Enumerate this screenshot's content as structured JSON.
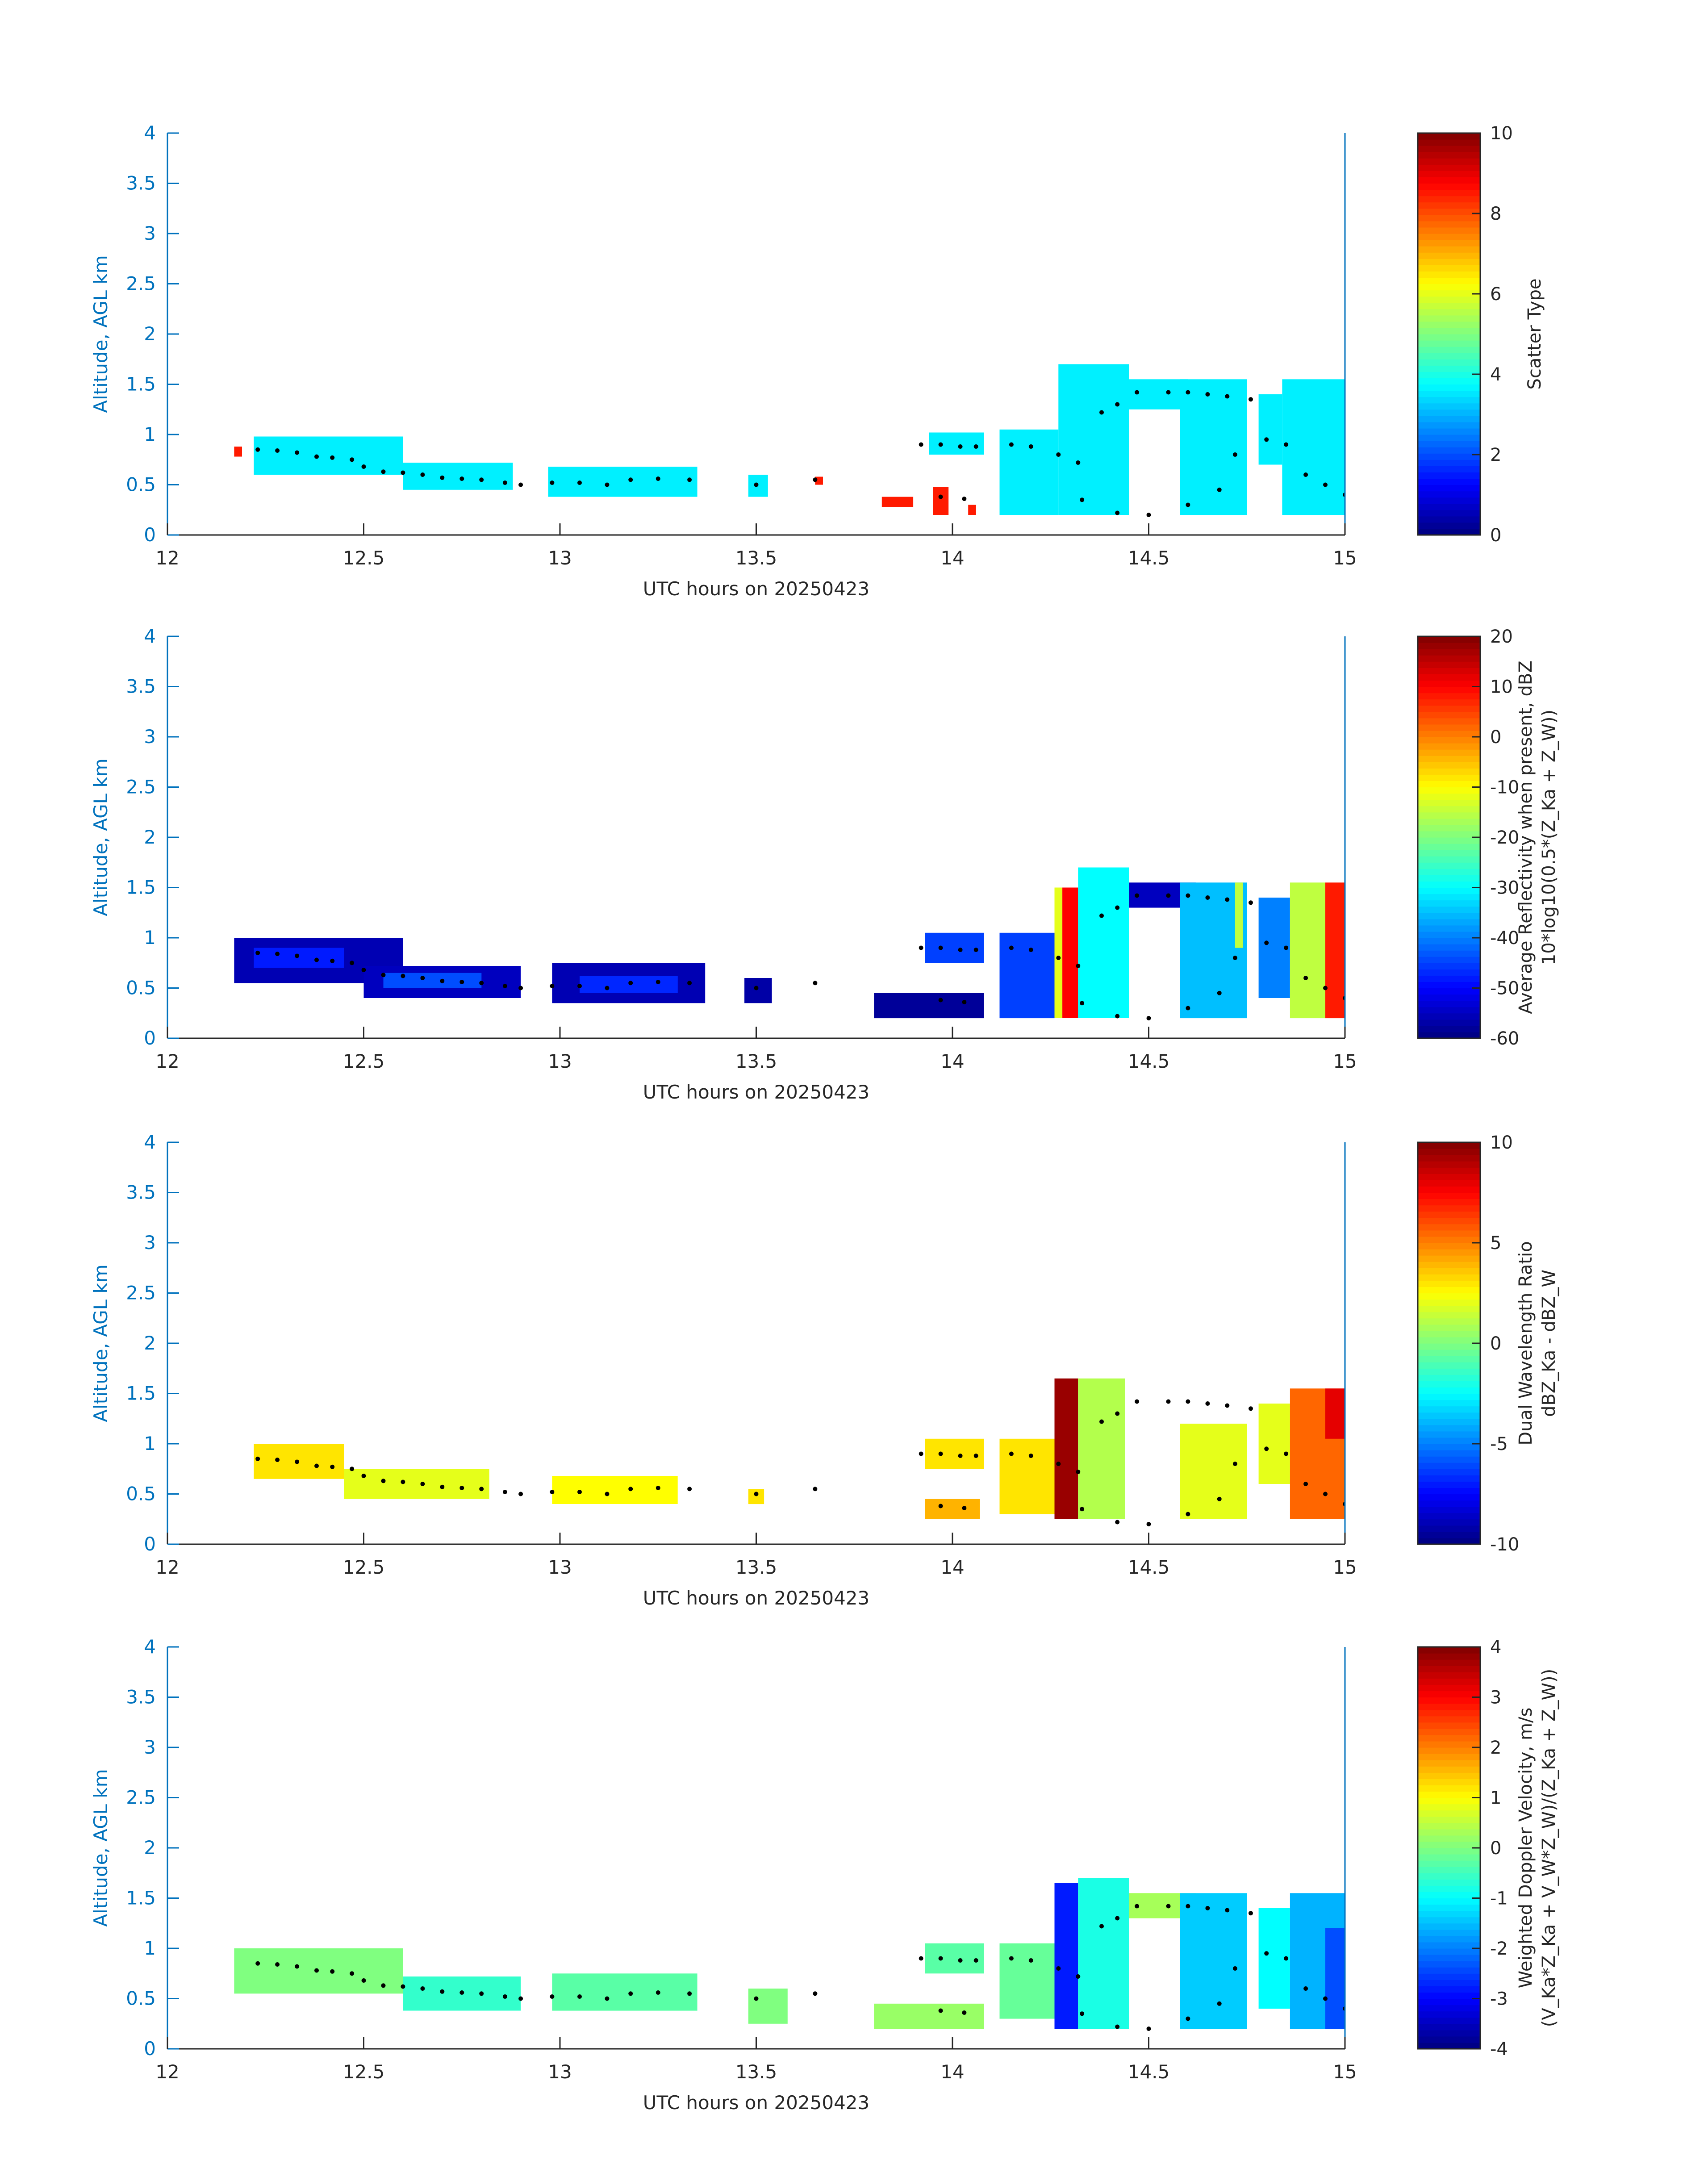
{
  "figure": {
    "xlabel": "UTC hours on 20250423",
    "ylabel": "Altitude, AGL km",
    "x_ticks": [
      "12",
      "12.5",
      "13",
      "13.5",
      "14",
      "14.5",
      "15"
    ],
    "y_ticks": [
      "0",
      "0.5",
      "1",
      "1.5",
      "2",
      "2.5",
      "3",
      "3.5",
      "4"
    ],
    "axis_color": "#0072BD",
    "label_color": "#262626"
  },
  "chart_data": [
    {
      "type": "heatmap",
      "panel": "scatter-type",
      "title": "",
      "xlabel": "UTC hours on 20250423",
      "ylabel": "Altitude, AGL km",
      "xlim": [
        12,
        15
      ],
      "ylim": [
        0,
        4
      ],
      "colorbar": {
        "label_lines": [
          "Scatter Type"
        ],
        "range": [
          0,
          10
        ],
        "ticks": [
          "0",
          "2",
          "4",
          "6",
          "8",
          "10"
        ]
      },
      "fields": [
        {
          "x": [
            12.22,
            12.6
          ],
          "y": [
            0.6,
            0.98
          ],
          "v": 3.6
        },
        {
          "x": [
            12.6,
            12.88
          ],
          "y": [
            0.45,
            0.72
          ],
          "v": 3.6
        },
        {
          "x": [
            12.97,
            13.35
          ],
          "y": [
            0.38,
            0.68
          ],
          "v": 3.6
        },
        {
          "x": [
            13.48,
            13.53
          ],
          "y": [
            0.38,
            0.6
          ],
          "v": 3.6
        },
        {
          "x": [
            13.94,
            14.08
          ],
          "y": [
            0.8,
            1.02
          ],
          "v": 3.6
        },
        {
          "x": [
            14.12,
            14.27
          ],
          "y": [
            0.2,
            1.05
          ],
          "v": 3.6
        },
        {
          "x": [
            14.27,
            14.45
          ],
          "y": [
            0.2,
            1.7
          ],
          "v": 3.6
        },
        {
          "x": [
            14.45,
            14.6
          ],
          "y": [
            1.25,
            1.55
          ],
          "v": 3.6
        },
        {
          "x": [
            14.58,
            14.75
          ],
          "y": [
            0.2,
            1.55
          ],
          "v": 3.6
        },
        {
          "x": [
            14.78,
            14.84
          ],
          "y": [
            0.7,
            1.4
          ],
          "v": 3.6
        },
        {
          "x": [
            14.84,
            15.0
          ],
          "y": [
            0.2,
            1.55
          ],
          "v": 3.6
        },
        {
          "x": [
            12.17,
            12.19
          ],
          "y": [
            0.78,
            0.88
          ],
          "v": 8.5
        },
        {
          "x": [
            13.82,
            13.9
          ],
          "y": [
            0.28,
            0.38
          ],
          "v": 8.5
        },
        {
          "x": [
            13.95,
            13.99
          ],
          "y": [
            0.2,
            0.48
          ],
          "v": 8.5
        },
        {
          "x": [
            14.04,
            14.06
          ],
          "y": [
            0.2,
            0.3
          ],
          "v": 8.5
        },
        {
          "x": [
            13.65,
            13.67
          ],
          "y": [
            0.5,
            0.58
          ],
          "v": 8.5
        }
      ]
    },
    {
      "type": "heatmap",
      "panel": "average-reflectivity",
      "title": "",
      "xlabel": "UTC hours on 20250423",
      "ylabel": "Altitude, AGL km",
      "xlim": [
        12,
        15
      ],
      "ylim": [
        0,
        4
      ],
      "colorbar": {
        "label_lines": [
          "Average Reflectivity when present, dBZ",
          "10*log10(0.5*(Z_Ka + Z_W))"
        ],
        "range": [
          -60,
          20
        ],
        "ticks": [
          "-60",
          "-50",
          "-40",
          "-30",
          "-20",
          "-10",
          "0",
          "10",
          "20"
        ]
      },
      "fields": [
        {
          "x": [
            12.17,
            12.6
          ],
          "y": [
            0.55,
            1.0
          ],
          "v": -56
        },
        {
          "x": [
            12.22,
            12.45
          ],
          "y": [
            0.7,
            0.9
          ],
          "v": -48
        },
        {
          "x": [
            12.5,
            12.9
          ],
          "y": [
            0.4,
            0.72
          ],
          "v": -55
        },
        {
          "x": [
            12.55,
            12.8
          ],
          "y": [
            0.5,
            0.65
          ],
          "v": -44
        },
        {
          "x": [
            12.98,
            13.37
          ],
          "y": [
            0.35,
            0.75
          ],
          "v": -56
        },
        {
          "x": [
            13.05,
            13.3
          ],
          "y": [
            0.45,
            0.62
          ],
          "v": -47
        },
        {
          "x": [
            13.47,
            13.54
          ],
          "y": [
            0.35,
            0.6
          ],
          "v": -57
        },
        {
          "x": [
            13.8,
            14.08
          ],
          "y": [
            0.2,
            0.45
          ],
          "v": -58
        },
        {
          "x": [
            13.93,
            14.08
          ],
          "y": [
            0.75,
            1.05
          ],
          "v": -45
        },
        {
          "x": [
            14.12,
            14.26
          ],
          "y": [
            0.2,
            1.05
          ],
          "v": -45
        },
        {
          "x": [
            14.26,
            14.28
          ],
          "y": [
            0.2,
            1.5
          ],
          "v": -12
        },
        {
          "x": [
            14.28,
            14.32
          ],
          "y": [
            0.2,
            1.5
          ],
          "v": 10
        },
        {
          "x": [
            14.32,
            14.45
          ],
          "y": [
            0.2,
            1.7
          ],
          "v": -30
        },
        {
          "x": [
            14.45,
            14.62
          ],
          "y": [
            1.3,
            1.55
          ],
          "v": -55
        },
        {
          "x": [
            14.58,
            14.75
          ],
          "y": [
            0.2,
            1.55
          ],
          "v": -35
        },
        {
          "x": [
            14.72,
            14.74
          ],
          "y": [
            0.9,
            1.55
          ],
          "v": -15
        },
        {
          "x": [
            14.78,
            14.86
          ],
          "y": [
            0.4,
            1.4
          ],
          "v": -40
        },
        {
          "x": [
            14.86,
            14.95
          ],
          "y": [
            0.2,
            1.55
          ],
          "v": -15
        },
        {
          "x": [
            14.95,
            15.0
          ],
          "y": [
            0.2,
            1.55
          ],
          "v": 8
        }
      ]
    },
    {
      "type": "heatmap",
      "panel": "dual-wavelength-ratio",
      "title": "",
      "xlabel": "UTC hours on 20250423",
      "ylabel": "Altitude, AGL km",
      "xlim": [
        12,
        15
      ],
      "ylim": [
        0,
        4
      ],
      "colorbar": {
        "label_lines": [
          "Dual Wavelength Ratio",
          "dBZ_Ka - dBZ_W"
        ],
        "range": [
          -10,
          10
        ],
        "ticks": [
          "-10",
          "-5",
          "0",
          "5",
          "10"
        ]
      },
      "fields": [
        {
          "x": [
            12.22,
            12.45
          ],
          "y": [
            0.65,
            1.0
          ],
          "v": 3
        },
        {
          "x": [
            12.45,
            12.82
          ],
          "y": [
            0.45,
            0.75
          ],
          "v": 2
        },
        {
          "x": [
            12.98,
            13.3
          ],
          "y": [
            0.4,
            0.68
          ],
          "v": 2.5
        },
        {
          "x": [
            13.48,
            13.52
          ],
          "y": [
            0.4,
            0.55
          ],
          "v": 3
        },
        {
          "x": [
            13.93,
            14.08
          ],
          "y": [
            0.75,
            1.05
          ],
          "v": 3
        },
        {
          "x": [
            13.93,
            14.07
          ],
          "y": [
            0.25,
            0.45
          ],
          "v": 4
        },
        {
          "x": [
            14.12,
            14.26
          ],
          "y": [
            0.3,
            1.05
          ],
          "v": 3
        },
        {
          "x": [
            14.26,
            14.32
          ],
          "y": [
            0.25,
            1.65
          ],
          "v": 9.5
        },
        {
          "x": [
            14.32,
            14.44
          ],
          "y": [
            0.25,
            1.65
          ],
          "v": 1
        },
        {
          "x": [
            14.58,
            14.75
          ],
          "y": [
            0.25,
            1.2
          ],
          "v": 2
        },
        {
          "x": [
            14.78,
            14.86
          ],
          "y": [
            0.6,
            1.4
          ],
          "v": 2
        },
        {
          "x": [
            14.86,
            15.0
          ],
          "y": [
            0.25,
            1.55
          ],
          "v": 5.5
        },
        {
          "x": [
            14.95,
            15.0
          ],
          "y": [
            1.05,
            1.55
          ],
          "v": 8
        }
      ]
    },
    {
      "type": "heatmap",
      "panel": "weighted-doppler-velocity",
      "title": "",
      "xlabel": "UTC hours on 20250423",
      "ylabel": "Altitude, AGL km",
      "xlim": [
        12,
        15
      ],
      "ylim": [
        0,
        4
      ],
      "colorbar": {
        "label_lines": [
          "Weighted Doppler Velocity, m/s",
          "(V_Ka*Z_Ka + V_W*Z_W)/(Z_Ka + Z_W))"
        ],
        "range": [
          -4,
          4
        ],
        "ticks": [
          "-4",
          "-3",
          "-2",
          "-1",
          "0",
          "1",
          "2",
          "3",
          "4"
        ]
      },
      "fields": [
        {
          "x": [
            12.17,
            12.6
          ],
          "y": [
            0.55,
            1.0
          ],
          "v": 0
        },
        {
          "x": [
            12.6,
            12.9
          ],
          "y": [
            0.38,
            0.72
          ],
          "v": -0.6
        },
        {
          "x": [
            12.98,
            13.35
          ],
          "y": [
            0.38,
            0.75
          ],
          "v": -0.3
        },
        {
          "x": [
            13.48,
            13.58
          ],
          "y": [
            0.25,
            0.6
          ],
          "v": 0
        },
        {
          "x": [
            13.8,
            14.08
          ],
          "y": [
            0.2,
            0.45
          ],
          "v": 0.2
        },
        {
          "x": [
            13.93,
            14.08
          ],
          "y": [
            0.75,
            1.05
          ],
          "v": -0.3
        },
        {
          "x": [
            14.12,
            14.26
          ],
          "y": [
            0.3,
            1.05
          ],
          "v": -0.2
        },
        {
          "x": [
            14.26,
            14.32
          ],
          "y": [
            0.2,
            1.65
          ],
          "v": -2.8
        },
        {
          "x": [
            14.32,
            14.45
          ],
          "y": [
            0.2,
            1.7
          ],
          "v": -0.8
        },
        {
          "x": [
            14.45,
            14.62
          ],
          "y": [
            1.3,
            1.55
          ],
          "v": 0.3
        },
        {
          "x": [
            14.58,
            14.75
          ],
          "y": [
            0.2,
            1.55
          ],
          "v": -1.4
        },
        {
          "x": [
            14.78,
            14.86
          ],
          "y": [
            0.4,
            1.4
          ],
          "v": -1.0
        },
        {
          "x": [
            14.86,
            15.0
          ],
          "y": [
            0.2,
            1.55
          ],
          "v": -1.6
        },
        {
          "x": [
            14.95,
            15.0
          ],
          "y": [
            0.2,
            1.2
          ],
          "v": -2.4
        }
      ]
    }
  ],
  "sounding_path": {
    "note_color": "#000000",
    "points": [
      [
        12.23,
        0.85
      ],
      [
        12.28,
        0.84
      ],
      [
        12.33,
        0.82
      ],
      [
        12.38,
        0.78
      ],
      [
        12.42,
        0.77
      ],
      [
        12.47,
        0.75
      ],
      [
        12.5,
        0.68
      ],
      [
        12.55,
        0.63
      ],
      [
        12.6,
        0.62
      ],
      [
        12.65,
        0.6
      ],
      [
        12.7,
        0.57
      ],
      [
        12.75,
        0.56
      ],
      [
        12.8,
        0.55
      ],
      [
        12.86,
        0.52
      ],
      [
        12.9,
        0.5
      ],
      [
        12.98,
        0.52
      ],
      [
        13.05,
        0.52
      ],
      [
        13.12,
        0.5
      ],
      [
        13.18,
        0.55
      ],
      [
        13.25,
        0.56
      ],
      [
        13.33,
        0.55
      ],
      [
        13.5,
        0.5
      ],
      [
        13.65,
        0.55
      ],
      [
        13.92,
        0.9
      ],
      [
        13.97,
        0.9
      ],
      [
        14.02,
        0.88
      ],
      [
        14.06,
        0.88
      ],
      [
        14.15,
        0.9
      ],
      [
        14.2,
        0.88
      ],
      [
        14.27,
        0.8
      ],
      [
        14.32,
        0.72
      ],
      [
        14.38,
        1.22
      ],
      [
        14.42,
        1.3
      ],
      [
        14.47,
        1.42
      ],
      [
        14.55,
        1.42
      ],
      [
        14.6,
        1.42
      ],
      [
        14.65,
        1.4
      ],
      [
        14.7,
        1.38
      ],
      [
        14.76,
        1.35
      ],
      [
        14.8,
        0.95
      ],
      [
        14.85,
        0.9
      ],
      [
        14.9,
        0.6
      ],
      [
        14.95,
        0.5
      ],
      [
        15.0,
        0.4
      ],
      [
        14.33,
        0.35
      ],
      [
        14.42,
        0.22
      ],
      [
        14.5,
        0.2
      ],
      [
        14.6,
        0.3
      ],
      [
        14.68,
        0.45
      ],
      [
        14.72,
        0.8
      ],
      [
        13.97,
        0.38
      ],
      [
        14.03,
        0.36
      ]
    ]
  }
}
